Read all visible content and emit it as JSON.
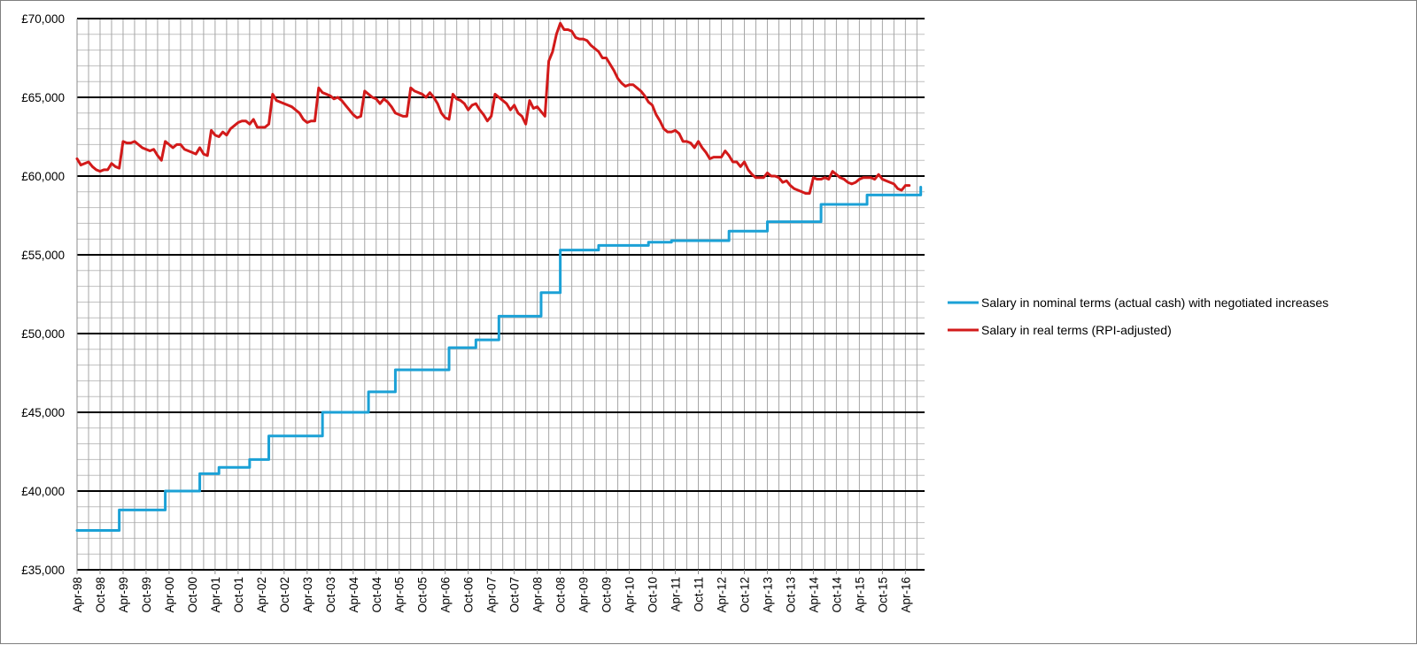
{
  "chart_data": {
    "type": "line",
    "title": "",
    "xlabel": "",
    "ylabel": "",
    "ylim": [
      35000,
      70000
    ],
    "yticks": [
      35000,
      40000,
      45000,
      50000,
      55000,
      60000,
      65000,
      70000
    ],
    "ytick_labels": [
      "£35,000",
      "£40,000",
      "£45,000",
      "£50,000",
      "£55,000",
      "£60,000",
      "£65,000",
      "£70,000"
    ],
    "xlim": [
      "1998-04",
      "2016-09"
    ],
    "xtick_labels": [
      "Apr-98",
      "Oct-98",
      "Apr-99",
      "Oct-99",
      "Apr-00",
      "Oct-00",
      "Apr-01",
      "Oct-01",
      "Apr-02",
      "Oct-02",
      "Apr-03",
      "Oct-03",
      "Apr-04",
      "Oct-04",
      "Apr-05",
      "Oct-05",
      "Apr-06",
      "Oct-06",
      "Apr-07",
      "Oct-07",
      "Apr-08",
      "Oct-08",
      "Apr-09",
      "Oct-09",
      "Apr-10",
      "Oct-10",
      "Apr-11",
      "Oct-11",
      "Apr-12",
      "Oct-12",
      "Apr-13",
      "Oct-13",
      "Apr-14",
      "Oct-14",
      "Apr-15",
      "Oct-15",
      "Apr-16"
    ],
    "grid": true,
    "legend_position": "right",
    "series": [
      {
        "name": "Salary in nominal terms (actual cash) with negotiated increases",
        "color": "#1ba1d6",
        "style": "step",
        "points": [
          [
            "1998-04",
            37500
          ],
          [
            "1999-03",
            38800
          ],
          [
            "2000-03",
            40000
          ],
          [
            "2000-12",
            41100
          ],
          [
            "2001-05",
            41500
          ],
          [
            "2002-01",
            42000
          ],
          [
            "2002-06",
            43500
          ],
          [
            "2003-08",
            45000
          ],
          [
            "2004-08",
            46300
          ],
          [
            "2005-03",
            47700
          ],
          [
            "2006-05",
            49100
          ],
          [
            "2006-12",
            49600
          ],
          [
            "2007-06",
            51100
          ],
          [
            "2008-05",
            52600
          ],
          [
            "2008-10",
            55300
          ],
          [
            "2009-08",
            55600
          ],
          [
            "2010-09",
            55800
          ],
          [
            "2011-03",
            55900
          ],
          [
            "2012-06",
            56500
          ],
          [
            "2013-04",
            57100
          ],
          [
            "2014-06",
            58200
          ],
          [
            "2015-06",
            58800
          ],
          [
            "2016-08",
            59300
          ]
        ]
      },
      {
        "name": "Salary in real terms (RPI-adjusted)",
        "color": "#d21a1a",
        "style": "line",
        "points": [
          [
            "1998-04",
            61100
          ],
          [
            "1998-05",
            60700
          ],
          [
            "1998-06",
            60800
          ],
          [
            "1998-07",
            60900
          ],
          [
            "1998-08",
            60600
          ],
          [
            "1998-09",
            60400
          ],
          [
            "1998-10",
            60300
          ],
          [
            "1998-11",
            60400
          ],
          [
            "1998-12",
            60400
          ],
          [
            "1999-01",
            60800
          ],
          [
            "1999-02",
            60600
          ],
          [
            "1999-03",
            60500
          ],
          [
            "1999-04",
            62200
          ],
          [
            "1999-05",
            62100
          ],
          [
            "1999-06",
            62100
          ],
          [
            "1999-07",
            62200
          ],
          [
            "1999-08",
            62000
          ],
          [
            "1999-09",
            61800
          ],
          [
            "1999-10",
            61700
          ],
          [
            "1999-11",
            61600
          ],
          [
            "1999-12",
            61700
          ],
          [
            "2000-01",
            61300
          ],
          [
            "2000-02",
            61000
          ],
          [
            "2000-03",
            62200
          ],
          [
            "2000-04",
            62000
          ],
          [
            "2000-05",
            61800
          ],
          [
            "2000-06",
            62000
          ],
          [
            "2000-07",
            62000
          ],
          [
            "2000-08",
            61700
          ],
          [
            "2000-09",
            61600
          ],
          [
            "2000-10",
            61500
          ],
          [
            "2000-11",
            61400
          ],
          [
            "2000-12",
            61800
          ],
          [
            "2001-01",
            61400
          ],
          [
            "2001-02",
            61300
          ],
          [
            "2001-03",
            62900
          ],
          [
            "2001-04",
            62600
          ],
          [
            "2001-05",
            62500
          ],
          [
            "2001-06",
            62800
          ],
          [
            "2001-07",
            62600
          ],
          [
            "2001-08",
            63000
          ],
          [
            "2001-09",
            63200
          ],
          [
            "2001-10",
            63400
          ],
          [
            "2001-11",
            63500
          ],
          [
            "2001-12",
            63500
          ],
          [
            "2002-01",
            63300
          ],
          [
            "2002-02",
            63600
          ],
          [
            "2002-03",
            63100
          ],
          [
            "2002-04",
            63100
          ],
          [
            "2002-05",
            63100
          ],
          [
            "2002-06",
            63300
          ],
          [
            "2002-07",
            65200
          ],
          [
            "2002-08",
            64800
          ],
          [
            "2002-09",
            64700
          ],
          [
            "2002-10",
            64600
          ],
          [
            "2002-11",
            64500
          ],
          [
            "2002-12",
            64400
          ],
          [
            "2003-01",
            64200
          ],
          [
            "2003-02",
            64000
          ],
          [
            "2003-03",
            63600
          ],
          [
            "2003-04",
            63400
          ],
          [
            "2003-05",
            63500
          ],
          [
            "2003-06",
            63500
          ],
          [
            "2003-07",
            65600
          ],
          [
            "2003-08",
            65300
          ],
          [
            "2003-09",
            65200
          ],
          [
            "2003-10",
            65100
          ],
          [
            "2003-11",
            64900
          ],
          [
            "2003-12",
            65000
          ],
          [
            "2004-01",
            64800
          ],
          [
            "2004-02",
            64500
          ],
          [
            "2004-03",
            64200
          ],
          [
            "2004-04",
            63900
          ],
          [
            "2004-05",
            63700
          ],
          [
            "2004-06",
            63800
          ],
          [
            "2004-07",
            65400
          ],
          [
            "2004-08",
            65200
          ],
          [
            "2004-09",
            65000
          ],
          [
            "2004-10",
            64900
          ],
          [
            "2004-11",
            64600
          ],
          [
            "2004-12",
            64900
          ],
          [
            "2005-01",
            64700
          ],
          [
            "2005-02",
            64400
          ],
          [
            "2005-03",
            64000
          ],
          [
            "2005-04",
            63900
          ],
          [
            "2005-05",
            63800
          ],
          [
            "2005-06",
            63800
          ],
          [
            "2005-07",
            65600
          ],
          [
            "2005-08",
            65400
          ],
          [
            "2005-09",
            65300
          ],
          [
            "2005-10",
            65200
          ],
          [
            "2005-11",
            65000
          ],
          [
            "2005-12",
            65300
          ],
          [
            "2006-01",
            65000
          ],
          [
            "2006-02",
            64600
          ],
          [
            "2006-03",
            64000
          ],
          [
            "2006-04",
            63700
          ],
          [
            "2006-05",
            63600
          ],
          [
            "2006-06",
            65200
          ],
          [
            "2006-07",
            64900
          ],
          [
            "2006-08",
            64800
          ],
          [
            "2006-09",
            64600
          ],
          [
            "2006-10",
            64200
          ],
          [
            "2006-11",
            64500
          ],
          [
            "2006-12",
            64600
          ],
          [
            "2007-01",
            64200
          ],
          [
            "2007-02",
            63900
          ],
          [
            "2007-03",
            63500
          ],
          [
            "2007-04",
            63800
          ],
          [
            "2007-05",
            65200
          ],
          [
            "2007-06",
            65000
          ],
          [
            "2007-07",
            64800
          ],
          [
            "2007-08",
            64600
          ],
          [
            "2007-09",
            64200
          ],
          [
            "2007-10",
            64500
          ],
          [
            "2007-11",
            64000
          ],
          [
            "2007-12",
            63800
          ],
          [
            "2008-01",
            63300
          ],
          [
            "2008-02",
            64800
          ],
          [
            "2008-03",
            64300
          ],
          [
            "2008-04",
            64400
          ],
          [
            "2008-05",
            64100
          ],
          [
            "2008-06",
            63800
          ],
          [
            "2008-07",
            67300
          ],
          [
            "2008-08",
            67900
          ],
          [
            "2008-09",
            69000
          ],
          [
            "2008-10",
            69700
          ],
          [
            "2008-11",
            69300
          ],
          [
            "2008-12",
            69300
          ],
          [
            "2009-01",
            69200
          ],
          [
            "2009-02",
            68800
          ],
          [
            "2009-03",
            68700
          ],
          [
            "2009-04",
            68700
          ],
          [
            "2009-05",
            68600
          ],
          [
            "2009-06",
            68300
          ],
          [
            "2009-07",
            68100
          ],
          [
            "2009-08",
            67900
          ],
          [
            "2009-09",
            67500
          ],
          [
            "2009-10",
            67500
          ],
          [
            "2009-11",
            67100
          ],
          [
            "2009-12",
            66700
          ],
          [
            "2010-01",
            66200
          ],
          [
            "2010-02",
            65900
          ],
          [
            "2010-03",
            65700
          ],
          [
            "2010-04",
            65800
          ],
          [
            "2010-05",
            65800
          ],
          [
            "2010-06",
            65600
          ],
          [
            "2010-07",
            65400
          ],
          [
            "2010-08",
            65100
          ],
          [
            "2010-09",
            64700
          ],
          [
            "2010-10",
            64500
          ],
          [
            "2010-11",
            63900
          ],
          [
            "2010-12",
            63500
          ],
          [
            "2011-01",
            63000
          ],
          [
            "2011-02",
            62800
          ],
          [
            "2011-03",
            62800
          ],
          [
            "2011-04",
            62900
          ],
          [
            "2011-05",
            62700
          ],
          [
            "2011-06",
            62200
          ],
          [
            "2011-07",
            62200
          ],
          [
            "2011-08",
            62100
          ],
          [
            "2011-09",
            61800
          ],
          [
            "2011-10",
            62200
          ],
          [
            "2011-11",
            61800
          ],
          [
            "2011-12",
            61500
          ],
          [
            "2012-01",
            61100
          ],
          [
            "2012-02",
            61200
          ],
          [
            "2012-03",
            61200
          ],
          [
            "2012-04",
            61200
          ],
          [
            "2012-05",
            61600
          ],
          [
            "2012-06",
            61300
          ],
          [
            "2012-07",
            60900
          ],
          [
            "2012-08",
            60900
          ],
          [
            "2012-09",
            60600
          ],
          [
            "2012-10",
            60900
          ],
          [
            "2012-11",
            60400
          ],
          [
            "2012-12",
            60100
          ],
          [
            "2013-01",
            59900
          ],
          [
            "2013-02",
            59900
          ],
          [
            "2013-03",
            59900
          ],
          [
            "2013-04",
            60200
          ],
          [
            "2013-05",
            60000
          ],
          [
            "2013-06",
            60000
          ],
          [
            "2013-07",
            59900
          ],
          [
            "2013-08",
            59600
          ],
          [
            "2013-09",
            59700
          ],
          [
            "2013-10",
            59400
          ],
          [
            "2013-11",
            59200
          ],
          [
            "2013-12",
            59100
          ],
          [
            "2014-01",
            59000
          ],
          [
            "2014-02",
            58900
          ],
          [
            "2014-03",
            58900
          ],
          [
            "2014-04",
            59900
          ],
          [
            "2014-05",
            59800
          ],
          [
            "2014-06",
            59800
          ],
          [
            "2014-07",
            59900
          ],
          [
            "2014-08",
            59800
          ],
          [
            "2014-09",
            60300
          ],
          [
            "2014-10",
            60100
          ],
          [
            "2014-11",
            59900
          ],
          [
            "2014-12",
            59800
          ],
          [
            "2015-01",
            59600
          ],
          [
            "2015-02",
            59500
          ],
          [
            "2015-03",
            59600
          ],
          [
            "2015-04",
            59800
          ],
          [
            "2015-05",
            59900
          ],
          [
            "2015-06",
            59900
          ],
          [
            "2015-07",
            59900
          ],
          [
            "2015-08",
            59800
          ],
          [
            "2015-09",
            60100
          ],
          [
            "2015-10",
            59800
          ],
          [
            "2015-11",
            59700
          ],
          [
            "2015-12",
            59600
          ],
          [
            "2016-01",
            59500
          ],
          [
            "2016-02",
            59200
          ],
          [
            "2016-03",
            59100
          ],
          [
            "2016-04",
            59400
          ],
          [
            "2016-05",
            59400
          ]
        ]
      }
    ]
  }
}
